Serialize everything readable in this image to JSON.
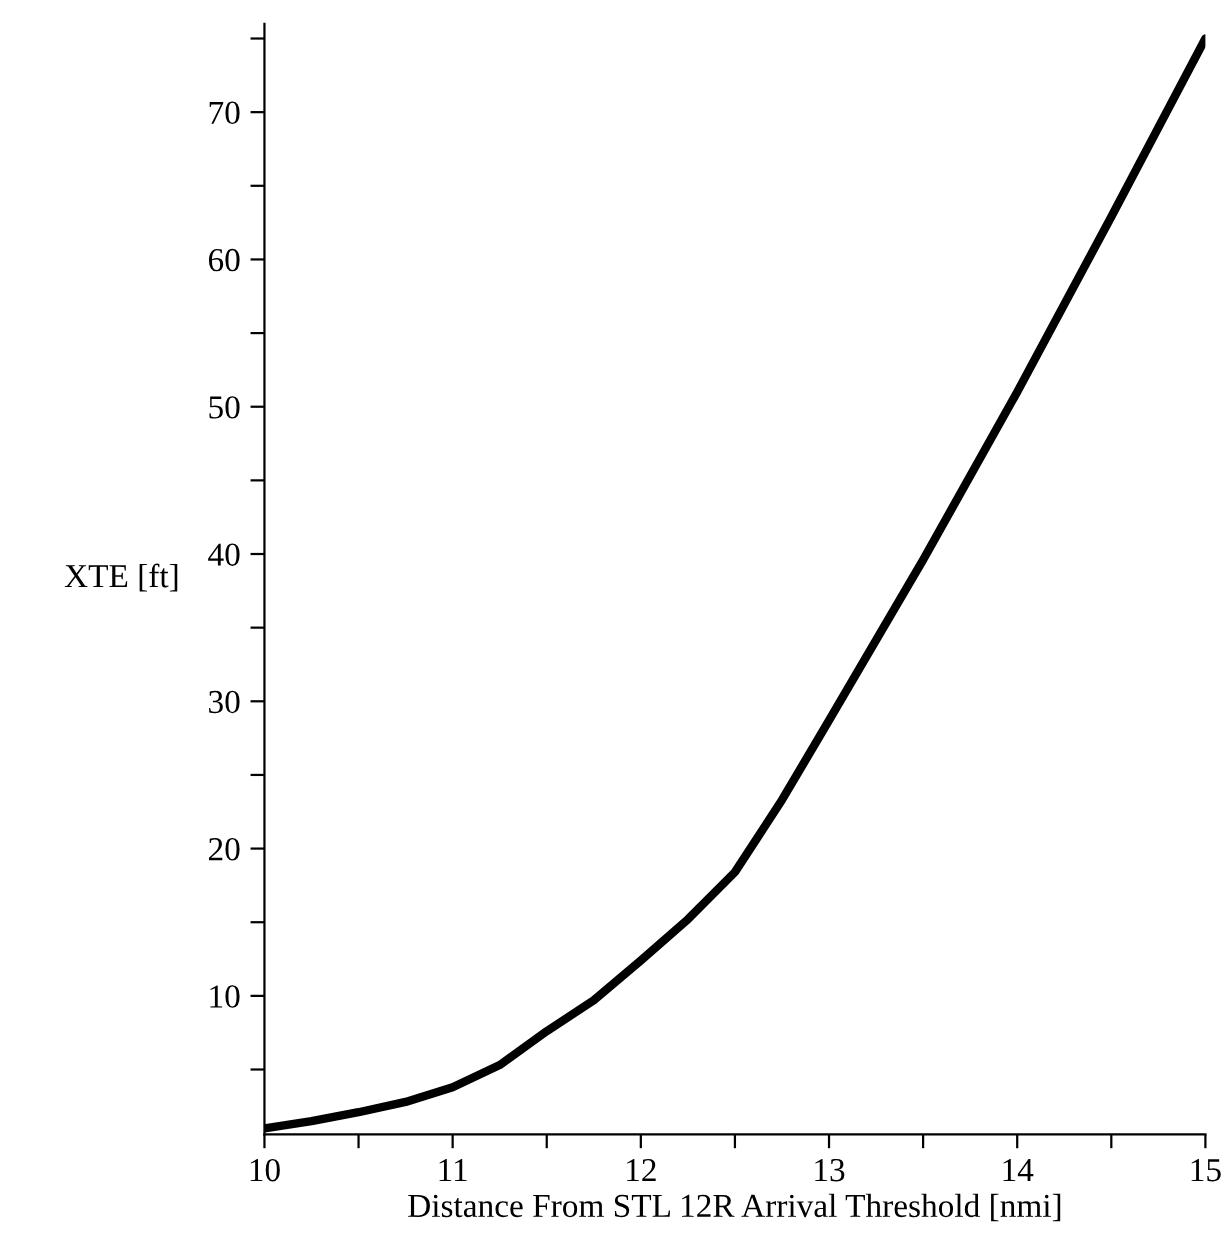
{
  "chart_data": {
    "type": "line",
    "xlabel": "Distance From STL 12R Arrival Threshold [nmi]",
    "ylabel": "XTE [ft]",
    "x": [
      10,
      10.25,
      10.5,
      10.75,
      11,
      11.25,
      11.5,
      11.75,
      12,
      12.25,
      12.5,
      12.75,
      13,
      13.5,
      14,
      14.5,
      15
    ],
    "series": [
      {
        "color": "#000000",
        "values": [
          1.0,
          1.5,
          2.1,
          2.8,
          3.8,
          5.3,
          7.6,
          9.7,
          12.4,
          15.2,
          18.4,
          23.3,
          28.7,
          39.6,
          51.0,
          62.9,
          75.0
        ]
      }
    ],
    "xlim": [
      10,
      15
    ],
    "ylim": [
      0.6,
      76
    ],
    "xticks": [
      10,
      {
        "value": 10.5,
        "label": null
      },
      11,
      {
        "value": 11.5,
        "label": null
      },
      12,
      {
        "value": 12.5,
        "label": null
      },
      13,
      {
        "value": 13.5,
        "label": null
      },
      14,
      {
        "value": 14.5,
        "label": null
      },
      15
    ],
    "yticks": [
      {
        "value": 5,
        "label": null
      },
      10,
      {
        "value": 15,
        "label": null
      },
      20,
      {
        "value": 25,
        "label": null
      },
      30,
      {
        "value": 35,
        "label": null
      },
      40,
      {
        "value": 45,
        "label": null
      },
      50,
      {
        "value": 55,
        "label": null
      },
      60,
      {
        "value": 65,
        "label": null
      },
      70,
      {
        "value": 75,
        "label": null
      }
    ],
    "grid": false,
    "legend": false,
    "marker": "none",
    "line_style": "solid"
  }
}
